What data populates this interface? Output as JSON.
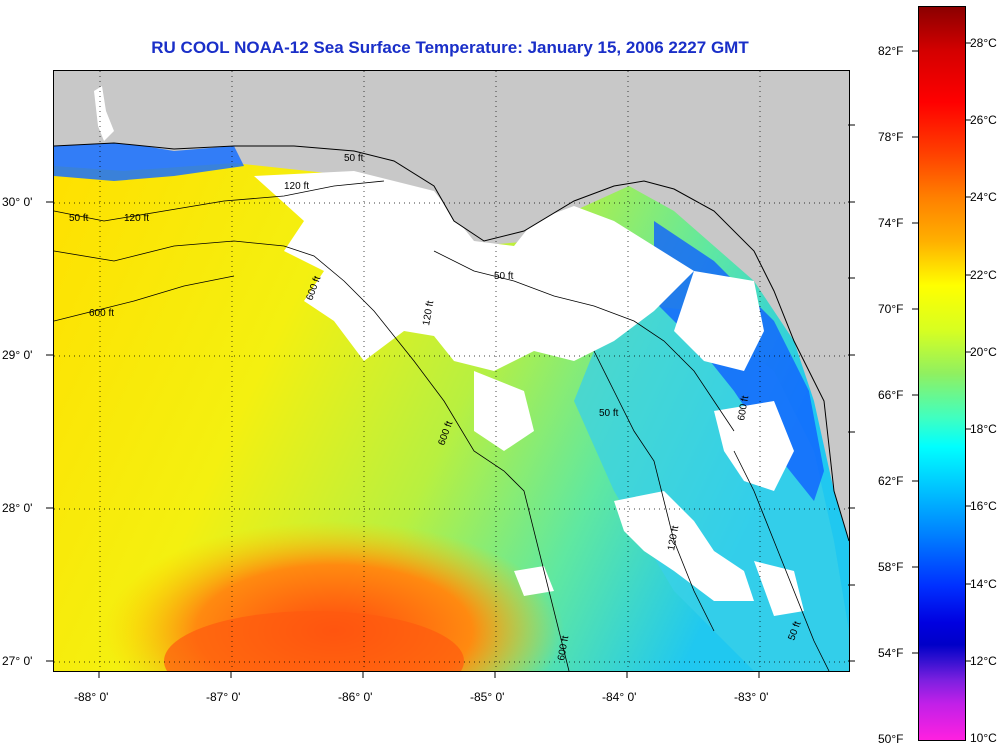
{
  "title": "RU COOL  NOAA-12  Sea Surface Temperature:  January 15, 2006 2227 GMT",
  "map": {
    "lat_ticks": [
      "30° 0'",
      "29° 0'",
      "28° 0'",
      "27° 0'"
    ],
    "lon_ticks": [
      "-88° 0'",
      "-87° 0'",
      "-86° 0'",
      "-85° 0'",
      "-84° 0'",
      "-83° 0'"
    ],
    "isobath_labels": [
      "50 ft",
      "120 ft",
      "120 ft",
      "600 ft",
      "600 ft",
      "600 ft",
      "50 ft",
      "120 ft",
      "600 ft",
      "50 ft",
      "120 ft",
      "600 ft",
      "50 ft",
      "50 ft"
    ],
    "colors": {
      "land": "#c8c8c8",
      "cloud": "#ffffff",
      "warm_core": "#ff5a10",
      "gulf": "#ffd400",
      "shelf": "#40e0d0",
      "cold_coast": "#0050ff",
      "contour": "#000000",
      "title": "#1a2fc8"
    }
  },
  "colorbar": {
    "fahrenheit": [
      "82°F",
      "78°F",
      "74°F",
      "70°F",
      "66°F",
      "62°F",
      "58°F",
      "54°F",
      "50°F"
    ],
    "celsius": [
      "28°C",
      "26°C",
      "24°C",
      "22°C",
      "20°C",
      "18°C",
      "16°C",
      "14°C",
      "12°C",
      "10°C"
    ]
  }
}
